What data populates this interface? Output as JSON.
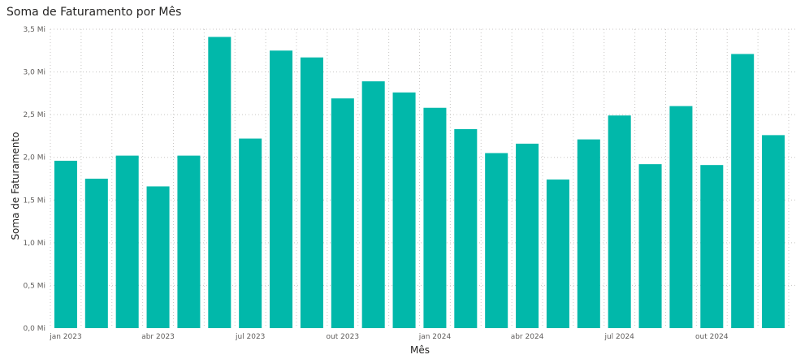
{
  "chart_data": {
    "type": "bar",
    "title": "Soma de Faturamento por Mês",
    "xlabel": "Mês",
    "ylabel": "Soma de Faturamento",
    "categories": [
      "jan 2023",
      "fev 2023",
      "mar 2023",
      "abr 2023",
      "mai 2023",
      "jun 2023",
      "jul 2023",
      "ago 2023",
      "set 2023",
      "out 2023",
      "nov 2023",
      "dez 2023",
      "jan 2024",
      "fev 2024",
      "mar 2024",
      "abr 2024",
      "mai 2024",
      "jun 2024",
      "jul 2024",
      "ago 2024",
      "set 2024",
      "out 2024",
      "nov 2024",
      "dez 2024"
    ],
    "values": [
      1.96,
      1.75,
      2.02,
      1.66,
      2.02,
      3.41,
      2.22,
      3.25,
      3.17,
      2.69,
      2.89,
      2.76,
      2.58,
      2.33,
      2.05,
      2.16,
      1.74,
      2.21,
      2.49,
      1.92,
      2.6,
      1.91,
      3.21,
      2.26
    ],
    "unit": "Mi",
    "ylim": [
      0,
      3.5
    ],
    "yticks": [
      "0,0 Mi",
      "0,5 Mi",
      "1,0 Mi",
      "1,5 Mi",
      "2,0 Mi",
      "2,5 Mi",
      "3,0 Mi",
      "3,5 Mi"
    ],
    "xticks": [
      {
        "index": 0,
        "label": "jan 2023"
      },
      {
        "index": 3,
        "label": "abr 2023"
      },
      {
        "index": 6,
        "label": "jul 2023"
      },
      {
        "index": 9,
        "label": "out 2023"
      },
      {
        "index": 12,
        "label": "jan 2024"
      },
      {
        "index": 15,
        "label": "abr 2024"
      },
      {
        "index": 18,
        "label": "jul 2024"
      },
      {
        "index": 21,
        "label": "out 2024"
      }
    ],
    "grid": true,
    "bar_color": "#01B8AA",
    "grid_color": "#c8c6c4"
  }
}
